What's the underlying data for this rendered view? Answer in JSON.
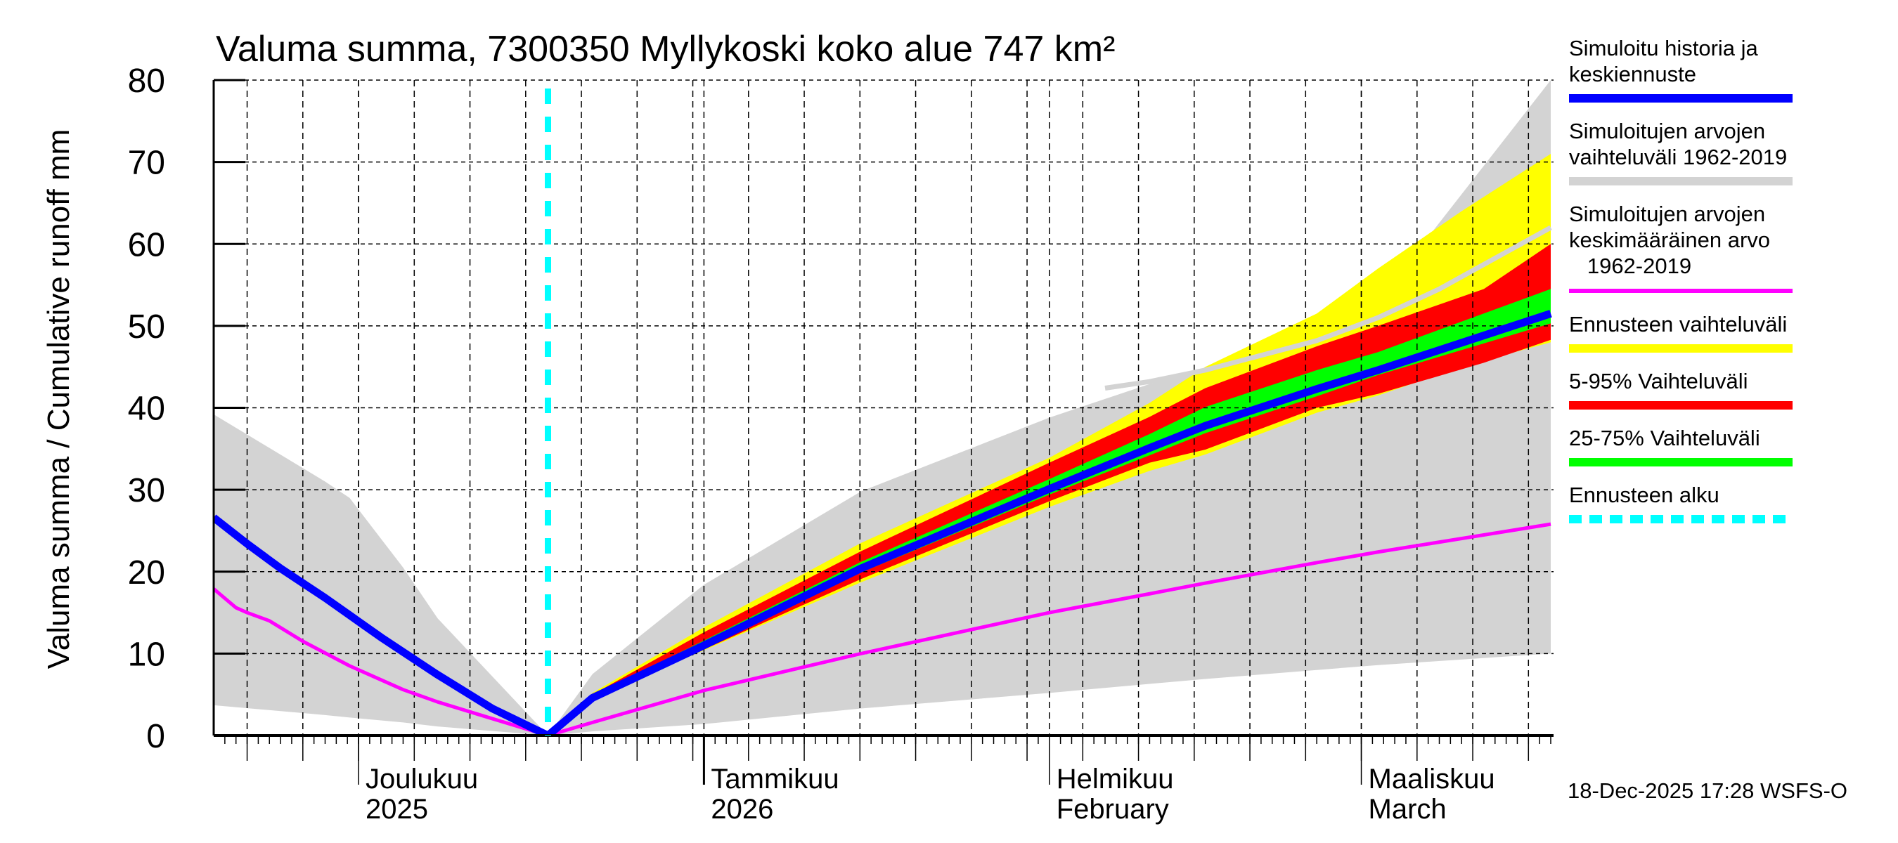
{
  "chart_data": {
    "type": "area",
    "title": "Valuma summa, 7300350 Myllykoski koko alue 747 km²",
    "ylabel": "Valuma summa / Cumulative runoff    mm",
    "xlabel": "",
    "ylim": [
      0,
      80
    ],
    "yticks": [
      0,
      10,
      20,
      30,
      40,
      50,
      60,
      70,
      80
    ],
    "grid": true,
    "legend_position": "right",
    "x_unit": "days since 2025-11-18",
    "xlim": [
      0,
      120
    ],
    "month_ticks": [
      {
        "day": 13,
        "label_fi": "Joulukuu",
        "label_en": "2025"
      },
      {
        "day": 44,
        "label_fi": "Tammikuu",
        "label_en": "2026"
      },
      {
        "day": 75,
        "label_fi": "Helmikuu",
        "label_en": "February"
      },
      {
        "day": 103,
        "label_fi": "Maaliskuu",
        "label_en": "March"
      }
    ],
    "forecast_start_day": 30,
    "series": [
      {
        "name": "Simuloitujen arvojen vaihteluväli 1962-2019",
        "kind": "band",
        "color": "#d3d3d3",
        "x": [
          0,
          10,
          12.2,
          17,
          20.1,
          23.7,
          30,
          34,
          44,
          58.1,
          75,
          84,
          89,
          99,
          104.5,
          120
        ],
        "upper": [
          39.2,
          31,
          29,
          20.5,
          14.3,
          9.1,
          0,
          7.5,
          18.4,
          29.8,
          38.8,
          42.9,
          44.6,
          49,
          53,
          80
        ],
        "lower": [
          3.7,
          2.5,
          2.2,
          1.6,
          1.1,
          0.7,
          0,
          0.5,
          1.4,
          3.3,
          5.2,
          6.3,
          6.9,
          8.0,
          8.6,
          10.0
        ]
      },
      {
        "name": "Ennusteen vaihteluväli",
        "kind": "band",
        "color": "#ffff00",
        "x": [
          30,
          34,
          44,
          58.1,
          75,
          84,
          89,
          99,
          104.5,
          112,
          120
        ],
        "upper": [
          0,
          5.2,
          13.2,
          23.5,
          33.9,
          40.6,
          45,
          51.5,
          57,
          64,
          71
        ],
        "lower": [
          0,
          4.5,
          10.4,
          18.7,
          27.9,
          32.3,
          34.3,
          39.4,
          41.5,
          45,
          48
        ]
      },
      {
        "name": "5-95% Vaihteluväli",
        "kind": "band",
        "color": "#ff0000",
        "x": [
          30,
          34,
          44,
          58.1,
          75,
          84,
          89,
          99,
          104.5,
          114,
          120
        ],
        "upper": [
          0,
          5.0,
          12.6,
          22.5,
          33.3,
          38.9,
          42.4,
          47.5,
          50,
          54.5,
          60
        ],
        "lower": [
          0,
          4.6,
          10.5,
          19.1,
          28.6,
          33.3,
          34.9,
          40,
          41.7,
          45.5,
          48.3
        ]
      },
      {
        "name": "25-75% Vaihteluväli",
        "kind": "band",
        "color": "#00ff00",
        "x": [
          30,
          34,
          44,
          58.1,
          75,
          84,
          89,
          99,
          104.5,
          120
        ],
        "upper": [
          0,
          4.9,
          11.6,
          21.2,
          31.3,
          36.8,
          40.1,
          44.6,
          46.8,
          54.5
        ],
        "lower": [
          0,
          4.7,
          10.8,
          19.9,
          29.4,
          34.2,
          36.9,
          41.4,
          44.0,
          50.3
        ]
      },
      {
        "name": "Simuloitujen arvojen keskimääräinen arvo 1962-2019",
        "kind": "line",
        "color": "#ff00ff",
        "x": [
          0,
          2,
          3,
          5,
          8,
          12.2,
          17,
          20.1,
          23.7,
          30,
          34,
          44,
          58.1,
          75,
          84,
          89,
          99,
          104.5,
          120
        ],
        "values": [
          17.9,
          15.6,
          15,
          14,
          11.5,
          8.5,
          5.6,
          4.1,
          2.6,
          0,
          1.6,
          5.5,
          10.0,
          15.0,
          17.3,
          18.6,
          21.1,
          22.4,
          25.8
        ]
      },
      {
        "name": "Simuloitujen arvojen keskimääräinen arvo (gray, forecast region)",
        "kind": "line",
        "color": "#d3d3d3",
        "x": [
          80,
          84,
          89,
          99,
          104.5,
          110,
          120
        ],
        "values": [
          42.4,
          43.2,
          44.6,
          48.2,
          51,
          54.5,
          62
        ]
      },
      {
        "name": "Simuloitu historia ja keskiennuste",
        "kind": "line",
        "color": "#0000ff",
        "x": [
          0,
          3,
          6,
          10,
          15,
          20,
          25,
          30,
          34,
          44,
          58.1,
          75,
          84,
          89,
          99,
          104.5,
          120
        ],
        "values": [
          26.6,
          23.4,
          20.4,
          16.8,
          12.0,
          7.5,
          3.3,
          0,
          4.6,
          11.0,
          20.4,
          30.1,
          35.1,
          37.8,
          42.3,
          44.6,
          51.5
        ]
      }
    ]
  },
  "legend": {
    "items": [
      {
        "label": "Simuloitu historia ja\nkeskiennuste",
        "color": "#0000ff",
        "style": "solid"
      },
      {
        "label": "Simuloitujen arvojen\nvaihteluväli 1962-2019",
        "color": "#d3d3d3",
        "style": "solid"
      },
      {
        "label": "Simuloitujen arvojen\nkeskimääräinen arvo\n   1962-2019",
        "color": "#ff00ff",
        "style": "thin"
      },
      {
        "label": "Ennusteen vaihteluväli",
        "color": "#ffff00",
        "style": "solid"
      },
      {
        "label": "5-95% Vaihteluväli",
        "color": "#ff0000",
        "style": "solid"
      },
      {
        "label": "25-75% Vaihteluväli",
        "color": "#00ff00",
        "style": "solid"
      },
      {
        "label": "Ennusteen alku",
        "color": "#00ffff",
        "style": "dashed"
      }
    ]
  },
  "footer": {
    "timestamp": "18-Dec-2025 17:28 WSFS-O"
  }
}
